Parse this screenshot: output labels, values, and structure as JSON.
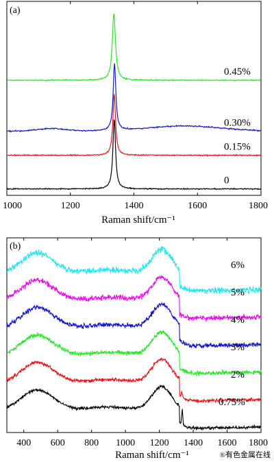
{
  "chart_data": [
    {
      "type": "line",
      "panel_label": "(a)",
      "xlabel": "Raman shift/cm⁻¹",
      "ylabel": "",
      "xlim": [
        1000,
        1800
      ],
      "xticks": [
        1000,
        1200,
        1400,
        1600,
        1800
      ],
      "yticks_shown": false,
      "legend": "none",
      "series": [
        {
          "name": "0",
          "color": "#000000",
          "baseline": 0.0,
          "peak_center": 1338,
          "peak_width": 5,
          "peak_height": 1.62,
          "broad_shoulder": 0.0,
          "noise": 0.012
        },
        {
          "name": "0.15%",
          "color": "#e8141c",
          "baseline": 0.78,
          "peak_center": 1338,
          "peak_width": 5,
          "peak_height": 1.42,
          "broad_shoulder": 0.0,
          "noise": 0.012
        },
        {
          "name": "0.30%",
          "color": "#1414c8",
          "baseline": 1.34,
          "peak_center": 1339,
          "peak_width": 5,
          "peak_height": 1.55,
          "broad_shoulder": 0.12,
          "noise": 0.014
        },
        {
          "name": "0.45%",
          "color": "#28e628",
          "baseline": 2.52,
          "peak_center": 1337,
          "peak_width": 6,
          "peak_height": 1.55,
          "broad_shoulder": 0.0,
          "noise": 0.012
        }
      ],
      "ylim": [
        -0.15,
        4.35
      ]
    },
    {
      "type": "line",
      "panel_label": "(b)",
      "xlabel": "Raman shift/cm⁻¹",
      "ylabel": "",
      "xlim": [
        300,
        1800
      ],
      "xticks": [
        400,
        600,
        800,
        1000,
        1200,
        1400,
        1600,
        1800
      ],
      "yticks_shown": false,
      "legend": "none",
      "series": [
        {
          "name": "0.75%",
          "color": "#000000",
          "offset": 0.0
        },
        {
          "name": "2%",
          "color": "#e8141c",
          "offset": 1.0
        },
        {
          "name": "3%",
          "color": "#28e628",
          "offset": 2.0
        },
        {
          "name": "4%",
          "color": "#1414c8",
          "offset": 3.0
        },
        {
          "name": "5%",
          "color": "#e614e6",
          "offset": 4.0
        },
        {
          "name": "6%",
          "color": "#28e6f0",
          "offset": 5.0
        }
      ],
      "band_positions": [
        480,
        1220,
        1335
      ],
      "ylim": [
        -0.6,
        6.5
      ]
    }
  ],
  "watermark": "®有色金属在线"
}
